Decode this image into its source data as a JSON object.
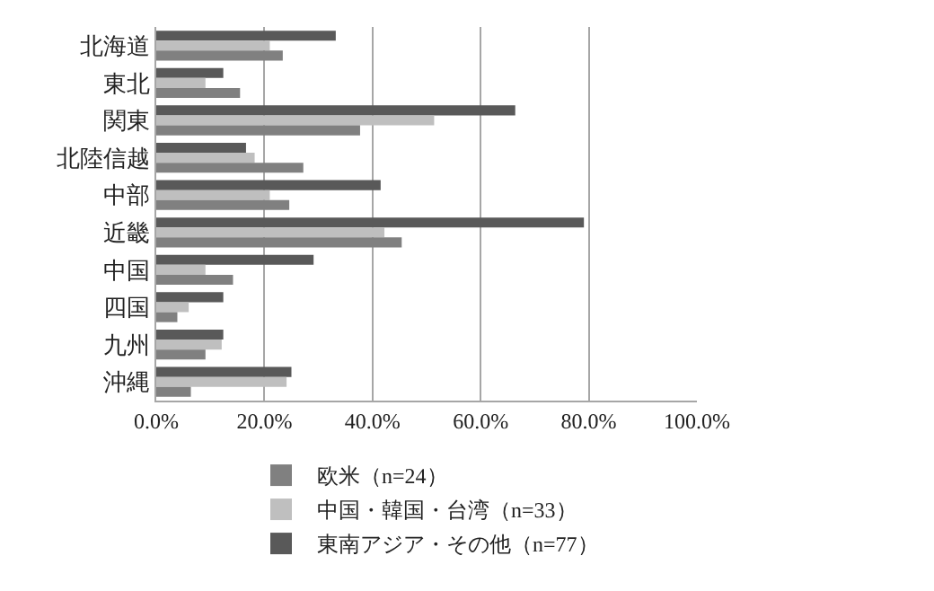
{
  "chart_data": {
    "type": "bar",
    "orientation": "horizontal",
    "categories": [
      "北海道",
      "東北",
      "関東",
      "北陸信越",
      "中部",
      "近畿",
      "中国",
      "四国",
      "九州",
      "沖縄"
    ],
    "series": [
      {
        "name": "欧米（n=24）",
        "color": "#808080",
        "values": [
          23.4,
          15.5,
          37.7,
          27.2,
          24.6,
          45.4,
          14.2,
          3.9,
          9.1,
          6.4
        ]
      },
      {
        "name": "中国・韓国・台湾（n=33）",
        "color": "#bfbfbf",
        "values": [
          21.0,
          9.1,
          51.4,
          18.2,
          21.0,
          42.2,
          9.1,
          6.0,
          12.1,
          24.1
        ]
      },
      {
        "name": "東南アジア・その他（n=77）",
        "color": "#595959",
        "values": [
          33.2,
          12.4,
          66.4,
          16.6,
          41.5,
          79.1,
          29.1,
          12.4,
          12.4,
          25.0
        ]
      }
    ],
    "xlim": [
      0,
      100
    ],
    "xticks": [
      {
        "value": 0,
        "label": "0.0%"
      },
      {
        "value": 20,
        "label": "20.0%"
      },
      {
        "value": 40,
        "label": "40.0%"
      },
      {
        "value": 60,
        "label": "60.0%"
      },
      {
        "value": 80,
        "label": "80.0%"
      },
      {
        "value": 100,
        "label": "100.0%"
      }
    ],
    "grid": "x",
    "legend": "bottom"
  }
}
